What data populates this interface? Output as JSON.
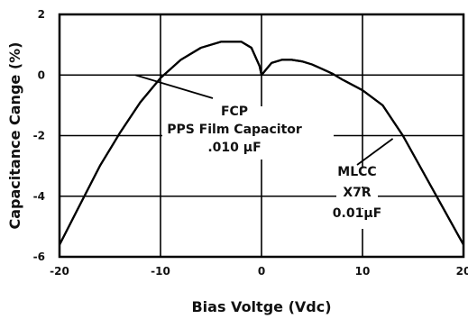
{
  "chart_data": {
    "type": "line",
    "title": "",
    "xlabel": "Bias Voltge (Vdc)",
    "ylabel": "Capacitance Cange (%)",
    "xlim": [
      -20,
      20
    ],
    "ylim": [
      -6,
      2
    ],
    "xticks": [
      -20,
      -10,
      0,
      10,
      20
    ],
    "yticks": [
      2,
      0,
      -2,
      -4,
      -6
    ],
    "xtick_labels": [
      "-20",
      "-10",
      "0",
      "10",
      "20"
    ],
    "ytick_labels": [
      "2",
      "0",
      "-2",
      "-4",
      "-6"
    ],
    "grid": true,
    "legend": "none",
    "series": [
      {
        "label": "FCP PPS Film Capacitor .010 µF",
        "x": [
          -20,
          -18,
          -16,
          -14,
          -12,
          -10,
          -8,
          -6,
          -4,
          -2,
          -1,
          -0.2,
          0,
          0.5,
          1,
          2,
          3,
          4,
          5,
          6,
          7,
          8,
          10,
          12,
          14,
          16,
          18,
          20
        ],
        "y": [
          -5.6,
          -4.3,
          -3.0,
          -1.9,
          -0.9,
          -0.1,
          0.5,
          0.9,
          1.1,
          1.1,
          0.9,
          0.3,
          0.0,
          0.2,
          0.4,
          0.5,
          0.5,
          0.45,
          0.35,
          0.2,
          0.05,
          -0.15,
          -0.5,
          -1.0,
          -2.0,
          -3.2,
          -4.4,
          -5.6
        ]
      },
      {
        "label": "MLCC X7R 0.01µF",
        "x": [
          -20,
          -18,
          -16,
          -14,
          -12,
          -10,
          -8,
          -6,
          -4,
          -2,
          -1,
          -0.2,
          0,
          0.5,
          1,
          2,
          3,
          4,
          5,
          6,
          7,
          8,
          10,
          12,
          14,
          16,
          18,
          20
        ],
        "y": [
          -5.6,
          -4.3,
          -3.0,
          -1.9,
          -0.9,
          -0.1,
          0.5,
          0.9,
          1.1,
          1.1,
          0.9,
          0.3,
          0.0,
          0.2,
          0.4,
          0.5,
          0.5,
          0.45,
          0.35,
          0.2,
          0.05,
          -0.15,
          -0.5,
          -1.0,
          -2.0,
          -3.2,
          -4.4,
          -5.6
        ]
      }
    ],
    "annotations": [
      {
        "lines": [
          "FCP",
          "PPS Film Capacitor",
          ".010 µF"
        ],
        "point_x": -12.5,
        "point_y": 0
      },
      {
        "lines": [
          "MLCC",
          "X7R",
          "0.01µF"
        ],
        "point_x": 13,
        "point_y": -2.1
      }
    ]
  }
}
